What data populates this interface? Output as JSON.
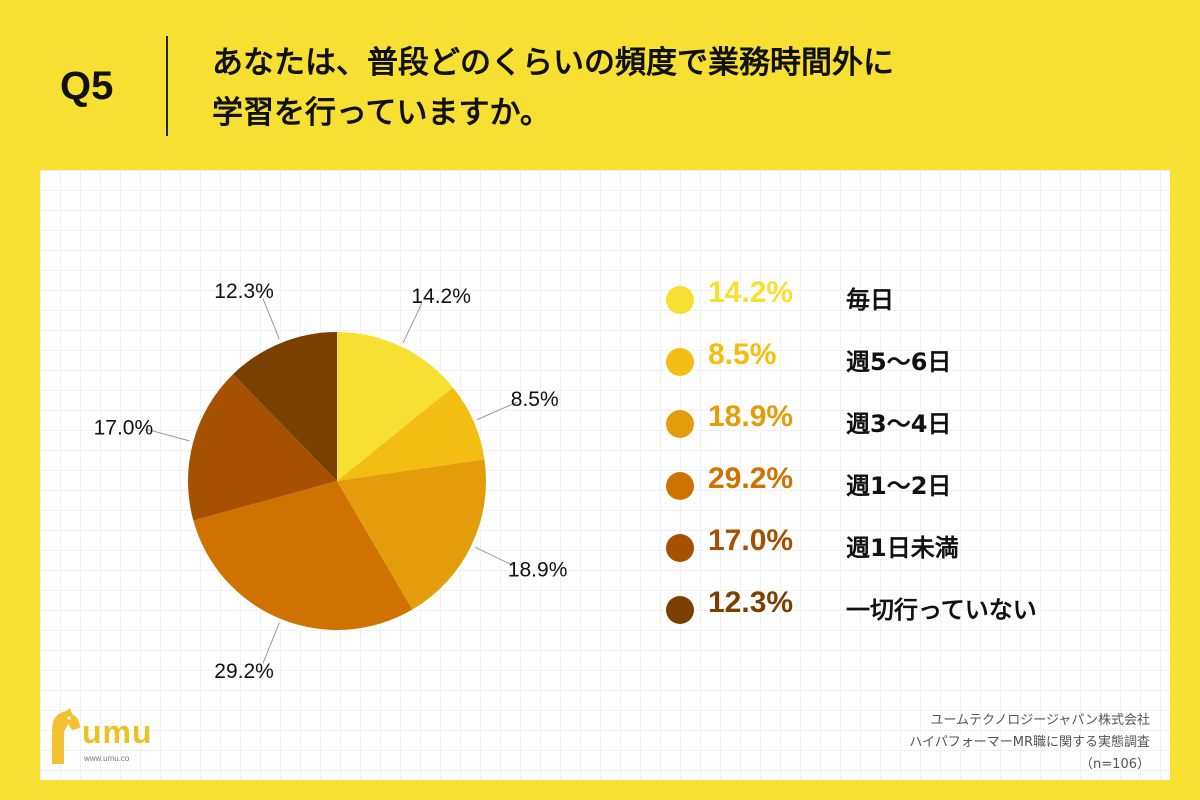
{
  "header": {
    "question_number": "Q5",
    "title_line1": "あなたは、普段どのくらいの頻度で業務時間外に",
    "title_line2": "学習を行っていますか。"
  },
  "chart_data": {
    "type": "pie",
    "slices": [
      {
        "label": "毎日",
        "value": 14.2,
        "display": "14.2%",
        "color": "#F8E033"
      },
      {
        "label": "週5〜6日",
        "value": 8.5,
        "display": "8.5%",
        "color": "#F3BE12"
      },
      {
        "label": "週3〜4日",
        "value": 18.9,
        "display": "18.9%",
        "color": "#E49D0A"
      },
      {
        "label": "週1〜2日",
        "value": 29.2,
        "display": "29.2%",
        "color": "#CF7200"
      },
      {
        "label": "週1日未満",
        "value": 17.0,
        "display": "17.0%",
        "color": "#A65001"
      },
      {
        "label": "一切行っていない",
        "value": 12.3,
        "display": "12.3%",
        "color": "#7A4000"
      }
    ],
    "legend_position": "right"
  },
  "logo": {
    "name": "umu",
    "url": "www.umu.co"
  },
  "source": {
    "line1": "ユームテクノロジージャパン株式会社",
    "line2": "ハイパフォーマーMR職に関する実態調査",
    "line3": "（n=106）"
  },
  "colors": {
    "background": "#F8E033",
    "panel": "#FFFFFF"
  }
}
